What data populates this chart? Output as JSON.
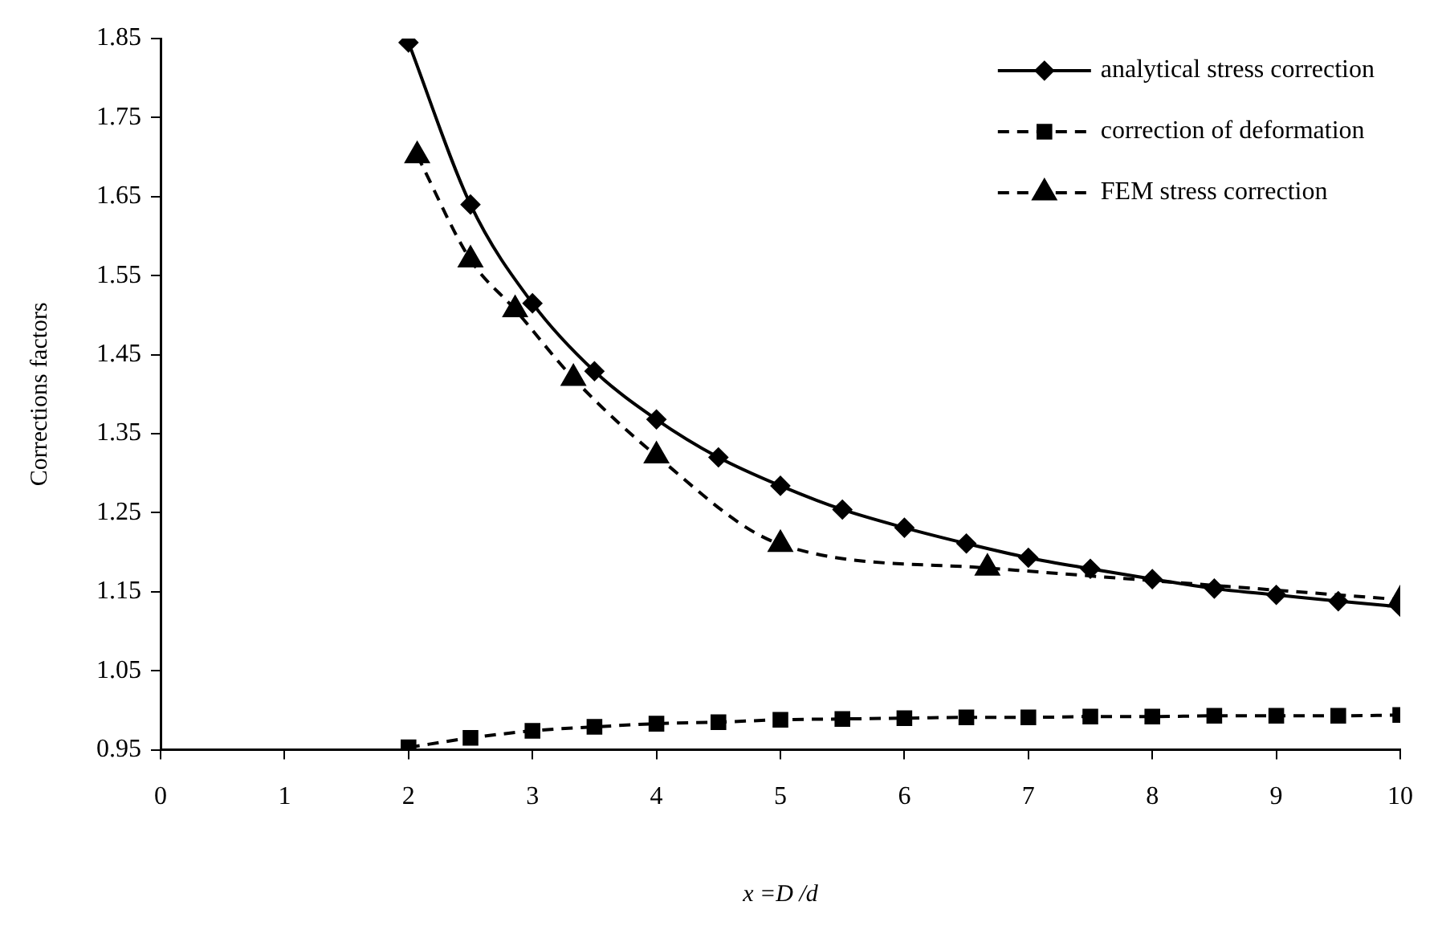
{
  "chart_data": {
    "type": "line",
    "xlabel": "x =D /d",
    "ylabel": "Corrections factors",
    "xlim": [
      0,
      10
    ],
    "xticks": [
      0,
      1,
      2,
      3,
      4,
      5,
      6,
      7,
      8,
      9,
      10
    ],
    "ylim": [
      0.95,
      1.85
    ],
    "yticks": [
      0.95,
      1.05,
      1.15,
      1.25,
      1.35,
      1.45,
      1.55,
      1.65,
      1.75,
      1.85
    ],
    "grid": false,
    "legend": "top right",
    "series": [
      {
        "name": "analytical stress correction",
        "color": "#000000",
        "marker": "diamond",
        "line_style": "solid",
        "x": [
          2,
          2.5,
          3,
          3.5,
          4,
          4.5,
          5,
          5.5,
          6,
          6.5,
          7,
          7.5,
          8,
          8.5,
          9,
          9.5,
          10
        ],
        "values": [
          1.845,
          1.64,
          1.515,
          1.429,
          1.368,
          1.32,
          1.284,
          1.254,
          1.231,
          1.211,
          1.193,
          1.179,
          1.166,
          1.154,
          1.146,
          1.138,
          1.131
        ]
      },
      {
        "name": "correction of deformation",
        "color": "#000000",
        "marker": "square",
        "line_style": "dashed",
        "x": [
          2,
          2.5,
          3,
          3.5,
          4,
          4.5,
          5,
          5.5,
          6,
          6.5,
          7,
          7.5,
          8,
          8.5,
          9,
          9.5,
          10
        ],
        "values": [
          0.953,
          0.965,
          0.974,
          0.979,
          0.983,
          0.985,
          0.988,
          0.989,
          0.99,
          0.991,
          0.991,
          0.992,
          0.992,
          0.993,
          0.993,
          0.993,
          0.994
        ]
      },
      {
        "name": "FEM stress correction",
        "color": "#000000",
        "marker": "triangle",
        "line_style": "dashed",
        "x": [
          2.07,
          2.5,
          2.86,
          3.33,
          4,
          5,
          6.67,
          10
        ],
        "values": [
          1.702,
          1.57,
          1.507,
          1.42,
          1.322,
          1.21,
          1.18,
          1.14
        ]
      }
    ]
  }
}
